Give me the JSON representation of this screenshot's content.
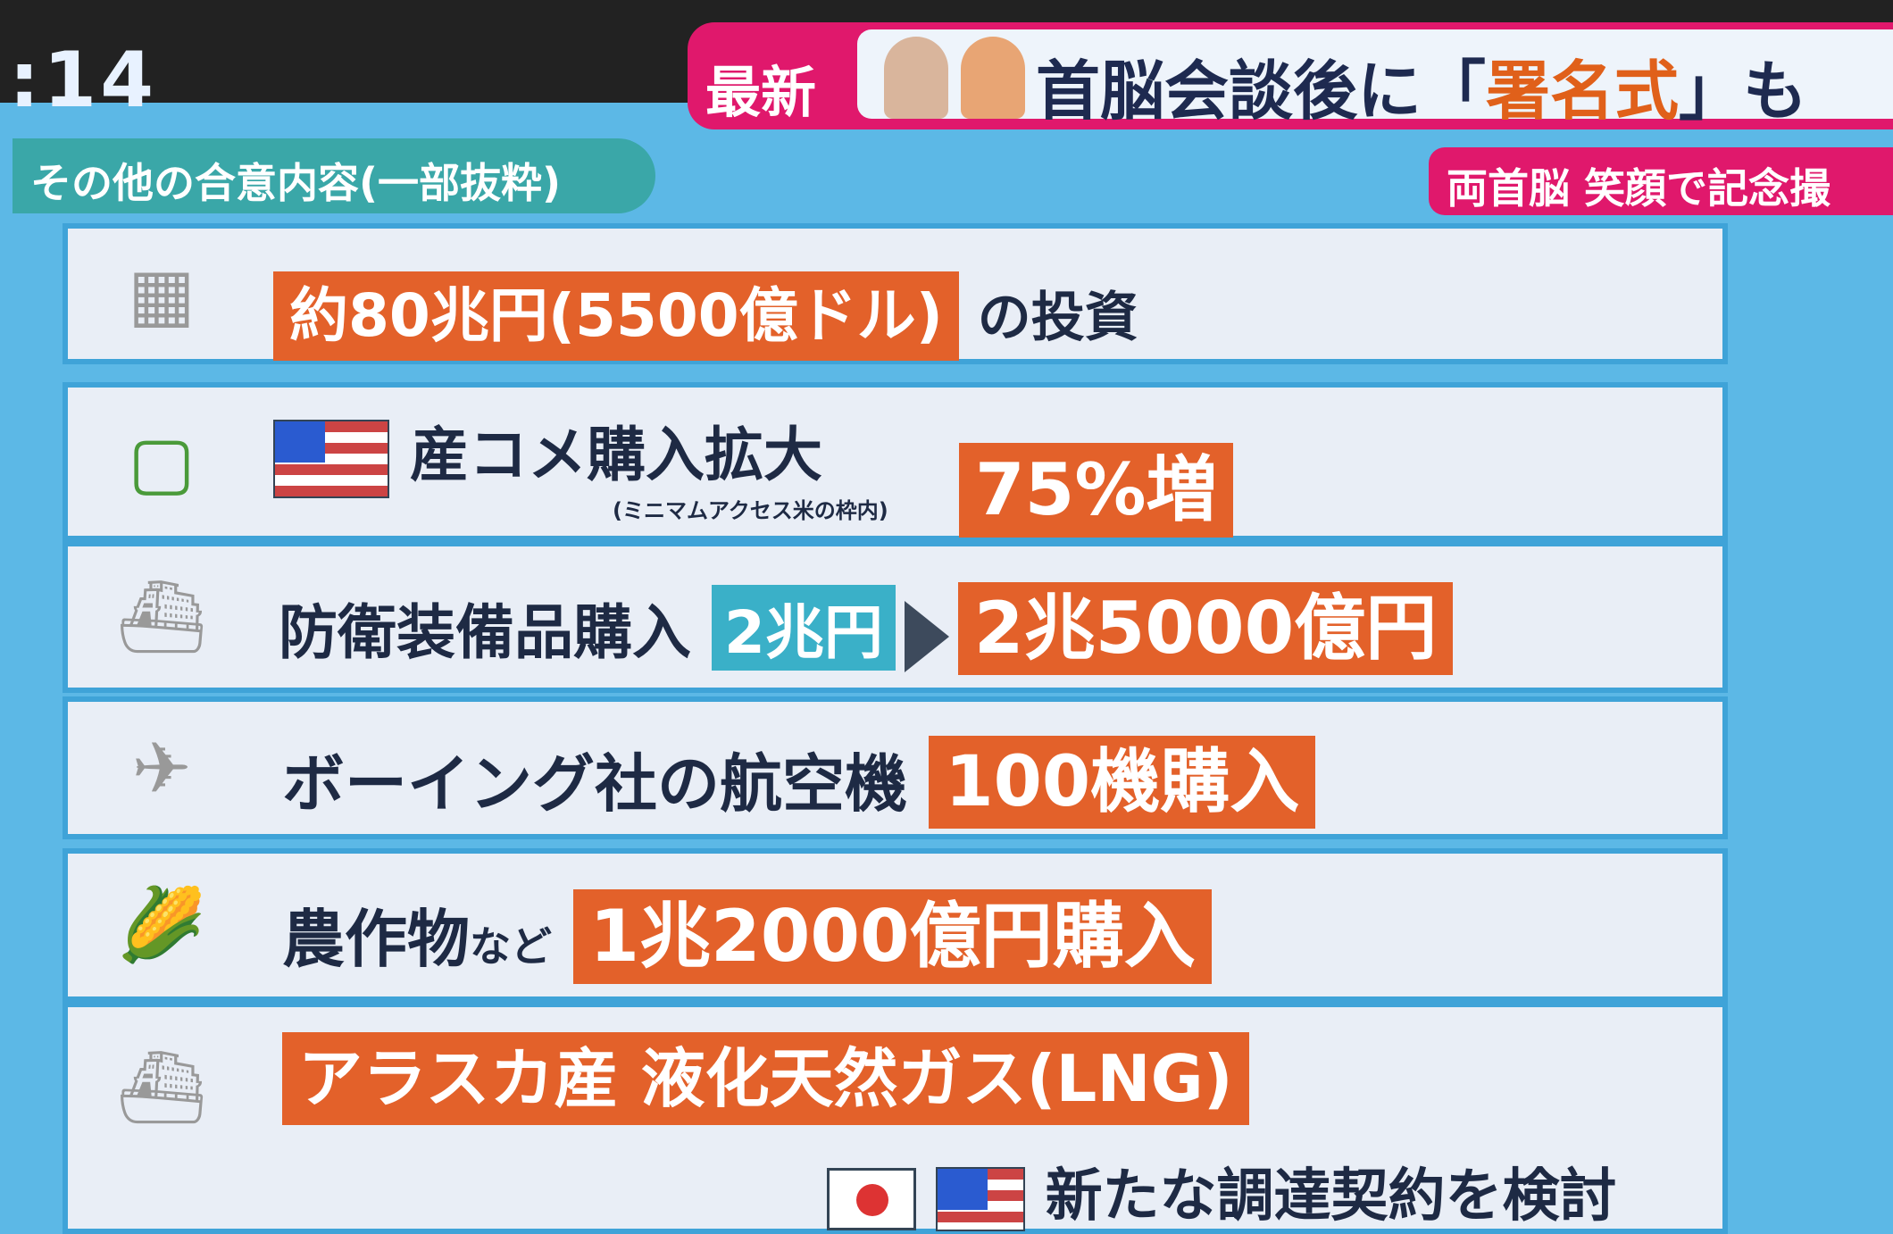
{
  "clock": ":14",
  "banner": {
    "live_label": "最新",
    "headline_pre": "首脳会談後に「",
    "headline_hl": "署名式",
    "headline_post": "」も",
    "subtitle": "両首脳 笑顔で記念撮"
  },
  "section_tag": "その他の合意内容(一部抜粋)",
  "rows": [
    {
      "icon": "money-stack-icon",
      "highlight": "約80兆円(5500億ドル)",
      "text": "の投資"
    },
    {
      "icon": "rice-bag-icon",
      "text": "産コメ購入拡大",
      "note": "(ミニマムアクセス米の枠内)",
      "highlight": "75%増"
    },
    {
      "icon": "warship-icon",
      "text": "防衛装備品購入",
      "from": "2兆円",
      "highlight": "2兆5000億円"
    },
    {
      "icon": "airplane-icon",
      "text": "ボーイング社の航空機",
      "highlight": "100機購入"
    },
    {
      "icon": "corn-icon",
      "text": "農作物",
      "small": "など",
      "highlight": "1兆2000億円購入"
    },
    {
      "icon": "lng-tanker-icon",
      "highlight": "アラスカ産 液化天然ガス(LNG)",
      "text": "新たな調達契約を検討"
    }
  ],
  "colors": {
    "orange": "#e3612a",
    "pink": "#e0186c",
    "teal": "#3aa7a8",
    "background": "#5cb8e6"
  }
}
